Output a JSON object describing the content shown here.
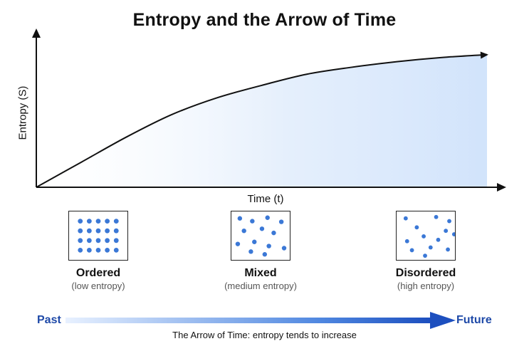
{
  "title": "Entropy and the Arrow of Time",
  "chart_data": {
    "type": "area",
    "xlabel": "Time (t)",
    "ylabel": "Entropy (S)",
    "x": [
      0,
      1,
      2,
      3,
      4,
      5,
      6,
      7,
      8,
      9,
      10
    ],
    "y": [
      0,
      0.18,
      0.36,
      0.52,
      0.64,
      0.73,
      0.81,
      0.86,
      0.9,
      0.93,
      0.95
    ],
    "xlim": [
      0,
      10
    ],
    "ylim": [
      0,
      1
    ],
    "grid": false,
    "line_color": "#111111",
    "fill_color": "#dbe9fb"
  },
  "states": [
    {
      "name": "Ordered",
      "sub": "(low entropy)"
    },
    {
      "name": "Mixed",
      "sub": "(medium entropy)"
    },
    {
      "name": "Disordered",
      "sub": "(high entropy)"
    }
  ],
  "timeline": {
    "past": "Past",
    "future": "Future",
    "caption": "The Arrow of Time: entropy tends to increase",
    "accent": "#1f4aa8",
    "particle_color": "#3b78d6"
  }
}
